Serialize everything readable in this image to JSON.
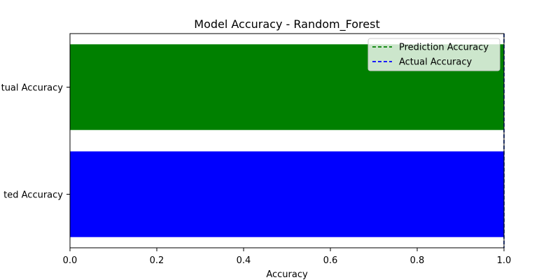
{
  "chart_data": {
    "type": "bar",
    "orientation": "horizontal",
    "title": "Model Accuracy - Random_Forest",
    "xlabel": "Accuracy",
    "ylabel": "",
    "xlim": [
      0,
      1.0
    ],
    "x_ticks": [
      0.0,
      0.2,
      0.4,
      0.6,
      0.8,
      1.0
    ],
    "x_tick_labels": [
      "0.0",
      "0.2",
      "0.4",
      "0.6",
      "0.8",
      "1.0"
    ],
    "categories": [
      "Predicted Accuracy",
      "Actual Accuracy"
    ],
    "category_labels_visible": [
      "ted Accuracy",
      "tual Accuracy"
    ],
    "values": [
      1.0,
      1.0
    ],
    "bar_colors": [
      "#0000ff",
      "#008000"
    ],
    "reference_lines": [
      {
        "name": "Prediction Accuracy",
        "value": 1.0,
        "color": "#008000",
        "style": "dashed"
      },
      {
        "name": "Actual Accuracy",
        "value": 1.0,
        "color": "#0000ff",
        "style": "dashed"
      }
    ],
    "legend": {
      "placement": "top-right",
      "entries": [
        "Prediction Accuracy",
        "Actual Accuracy"
      ]
    },
    "grid": false
  }
}
